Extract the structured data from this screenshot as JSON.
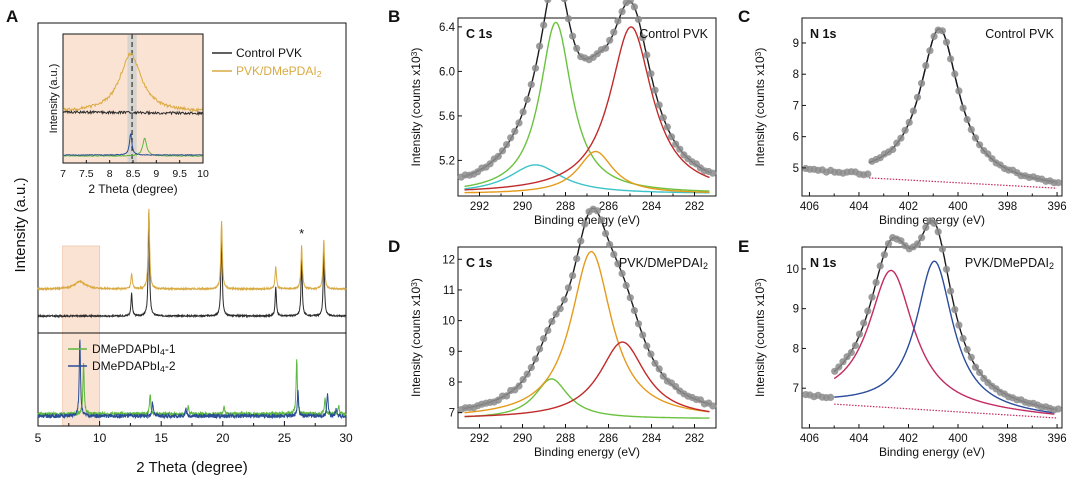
{
  "colors": {
    "control": "#2b2b2b",
    "dme": "#d9aa42",
    "ref1": "#5cb840",
    "ref2": "#2a4d96",
    "highlight": "#fbe3d3",
    "points": "#8c8c8c",
    "envelope": "#1a1a1a",
    "green": "#6ac23e",
    "cyan": "#3cc3c8",
    "orange": "#e59a1c",
    "red": "#c02a2a",
    "blue": "#2b4c9c",
    "magenta": "#c22a62"
  },
  "chart_data": [
    {
      "id": "A",
      "panel": "A",
      "type": "line",
      "xlabel": "2 Theta (degree)",
      "ylabel": "Intensity (a.u.)",
      "xlim": [
        5,
        30
      ],
      "xticks": [
        "5",
        "10",
        "15",
        "20",
        "25",
        "30"
      ],
      "highlight_range": [
        7,
        10
      ],
      "star": "*",
      "series": [
        {
          "name": "Control PVK",
          "peaks": [
            [
              12.6,
              0.22
            ],
            [
              14.0,
              1.0
            ],
            [
              19.9,
              0.85
            ],
            [
              24.3,
              0.28
            ],
            [
              26.4,
              0.55
            ],
            [
              28.2,
              0.62
            ]
          ]
        },
        {
          "name": "PVK/DMePDAI2",
          "peaks": [
            [
              8.4,
              0.06
            ],
            [
              12.6,
              0.12
            ],
            [
              14.0,
              0.65
            ],
            [
              19.9,
              0.55
            ],
            [
              24.3,
              0.18
            ],
            [
              26.4,
              0.35
            ],
            [
              28.2,
              0.4
            ]
          ]
        },
        {
          "name": "DMePDAPbI4-1",
          "peaks": [
            [
              8.7,
              0.72
            ],
            [
              14.1,
              0.28
            ],
            [
              17.2,
              0.12
            ],
            [
              20.1,
              0.1
            ],
            [
              26.0,
              0.78
            ],
            [
              28.3,
              0.22
            ],
            [
              29.4,
              0.12
            ]
          ]
        },
        {
          "name": "DMePDAPbI4-2",
          "peaks": [
            [
              8.4,
              1.0
            ],
            [
              14.3,
              0.18
            ],
            [
              17.0,
              0.1
            ],
            [
              26.1,
              0.35
            ],
            [
              28.5,
              0.3
            ],
            [
              29.2,
              0.1
            ]
          ]
        }
      ],
      "legend_top": [
        "Control PVK",
        "PVK/DMePDAI"
      ],
      "legend_top_sub": "2",
      "legend_bottom": [
        "DMePDAPbI",
        "DMePDAPbI"
      ],
      "legend_bottom_sub": "4",
      "legend_bottom_suffix": [
        "-1",
        "-2"
      ]
    },
    {
      "id": "A-inset",
      "panel": "A inset",
      "type": "line",
      "xlabel": "2 Theta (degree)",
      "ylabel": "Intensity (a.u.)",
      "xlim": [
        7,
        10
      ],
      "xticks": [
        "7",
        "7.5",
        "8",
        "8.5",
        "9",
        "9.5",
        "10"
      ],
      "dashed_line_x": 8.48,
      "series": [
        {
          "name": "PVK/DMePDAI2",
          "peak_center": 8.45,
          "peak_height": 1.0
        },
        {
          "name": "Control PVK",
          "baseline": 0.2
        },
        {
          "name": "DMePDAPbI4-2",
          "peak_center": 8.45
        },
        {
          "name": "DMePDAPbI4-1",
          "peak_center": 8.75
        }
      ]
    },
    {
      "id": "B",
      "panel": "B",
      "type": "scatter",
      "element": "C 1s",
      "sample": "Control PVK",
      "xlabel": "Binding energy (eV)",
      "ylabel_main": "Intensity (counts x10",
      "ylabel_sup": "3",
      "ylabel_end": ")",
      "xlim": [
        293,
        281
      ],
      "ylim": [
        4.88,
        6.48
      ],
      "xticks": [
        292,
        290,
        288,
        286,
        284,
        282
      ],
      "yticks": [
        5.2,
        5.6,
        6.0,
        6.4
      ],
      "ytick_labels": [
        "5.2",
        "5.6",
        "6.0",
        "6.4"
      ],
      "baseline": 4.9,
      "components": [
        {
          "color": "cyan",
          "center": 289.4,
          "height": 0.26,
          "width": 1.5
        },
        {
          "color": "green",
          "center": 288.45,
          "height": 1.54,
          "width": 0.9
        },
        {
          "color": "orange",
          "center": 286.6,
          "height": 0.38,
          "width": 1.0
        },
        {
          "color": "red",
          "center": 284.95,
          "height": 1.5,
          "width": 1.2
        }
      ]
    },
    {
      "id": "C",
      "panel": "C",
      "type": "scatter",
      "element": "N 1s",
      "sample": "Control PVK",
      "xlabel": "Binding energy (eV)",
      "ylabel_main": "Intensity (counts x10",
      "ylabel_sup": "3",
      "ylabel_end": ")",
      "xlim": [
        406.3,
        395.8
      ],
      "ylim": [
        4.1,
        9.8
      ],
      "xticks": [
        406,
        404,
        402,
        400,
        398,
        396
      ],
      "yticks": [
        5,
        6,
        7,
        8,
        9
      ],
      "ytick_labels": [
        "5",
        "6",
        "7",
        "8",
        "9"
      ],
      "bg": {
        "start": 403.6,
        "end": 396,
        "left": 4.68,
        "right": 4.35
      },
      "data_bg": {
        "left": 4.95,
        "right": 4.35
      },
      "components": [
        {
          "color": "blue",
          "center": 400.75,
          "height": 4.9,
          "width": 0.95
        }
      ]
    },
    {
      "id": "D",
      "panel": "D",
      "type": "scatter",
      "element": "C 1s",
      "sample_main": "PVK/DMePDAI",
      "sample_sub": "2",
      "xlabel": "Binding energy (eV)",
      "ylabel_main": "Intensity (counts x10",
      "ylabel_sup": "3",
      "ylabel_end": ")",
      "xlim": [
        293,
        281
      ],
      "ylim": [
        6.5,
        12.4
      ],
      "xticks": [
        292,
        290,
        288,
        286,
        284,
        282
      ],
      "yticks": [
        7,
        8,
        9,
        10,
        11,
        12
      ],
      "ytick_labels": [
        "7",
        "8",
        "9",
        "10",
        "11",
        "12"
      ],
      "baseline": 6.8,
      "components": [
        {
          "color": "green",
          "center": 288.65,
          "height": 1.3,
          "width": 0.95
        },
        {
          "color": "orange",
          "center": 286.8,
          "height": 5.45,
          "width": 1.15
        },
        {
          "color": "red",
          "center": 285.35,
          "height": 2.5,
          "width": 1.3
        }
      ]
    },
    {
      "id": "E",
      "panel": "E",
      "type": "scatter",
      "element": "N 1s",
      "sample_main": "PVK/DMePDAI",
      "sample_sub": "2",
      "xlabel": "Binding energy (eV)",
      "ylabel_main": "Intensity (counts x10",
      "ylabel_sup": "3",
      "ylabel_end": ")",
      "xlim": [
        406.3,
        395.8
      ],
      "ylim": [
        6.0,
        10.55
      ],
      "xticks": [
        406,
        404,
        402,
        400,
        398,
        396
      ],
      "yticks": [
        7,
        8,
        9,
        10
      ],
      "ytick_labels": [
        "7",
        "8",
        "9",
        "10"
      ],
      "bg": {
        "start": 405,
        "end": 396,
        "left": 6.6,
        "right": 6.25
      },
      "data_bg": {
        "left": 6.85,
        "right": 6.25
      },
      "components": [
        {
          "color": "magenta",
          "center": 402.7,
          "height": 3.45,
          "width": 1.1
        },
        {
          "color": "blue",
          "center": 400.95,
          "height": 3.75,
          "width": 0.9
        }
      ]
    }
  ]
}
